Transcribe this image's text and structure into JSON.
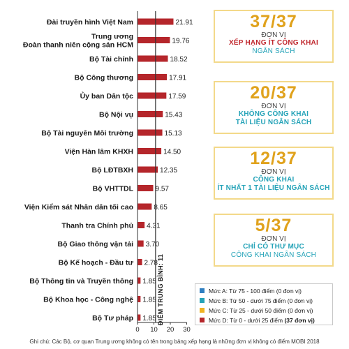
{
  "chart_data": {
    "type": "bar",
    "orientation": "horizontal",
    "categories": [
      [
        "Đài truyền hình Việt Nam"
      ],
      [
        "Trung ương",
        "Đoàn thanh niên cộng sản HCM"
      ],
      [
        "Bộ Tài chính"
      ],
      [
        "Bộ Công thương"
      ],
      [
        "Ủy ban Dân tộc"
      ],
      [
        "Bộ Nội vụ"
      ],
      [
        "Bộ Tài nguyên Môi trường"
      ],
      [
        "Viện Hàn lâm KHXH"
      ],
      [
        "Bộ LĐTBXH"
      ],
      [
        "Bộ VHTTDL"
      ],
      [
        "Viện Kiểm sát Nhân dân tối cao"
      ],
      [
        "Thanh tra Chính phủ"
      ],
      [
        "Bộ Giao thông vận tải"
      ],
      [
        "Bộ Kế hoạch - Đầu tư"
      ],
      [
        "Bộ Thông tin và Truyền thông"
      ],
      [
        "Bộ Khoa học - Công nghệ"
      ],
      [
        "Bộ Tư pháp"
      ]
    ],
    "values": [
      21.91,
      19.76,
      18.52,
      17.91,
      17.59,
      15.43,
      15.13,
      14.5,
      12.35,
      9.57,
      8.65,
      4.31,
      3.7,
      2.78,
      1.85,
      1.85,
      1.85
    ],
    "value_labels": [
      "21.91",
      "19.76",
      "18.52",
      "17.91",
      "17.59",
      "15.43",
      "15.13",
      "14.50",
      "12.35",
      "9.57",
      "8.65",
      "4.31",
      "3.70",
      "2.78",
      "1.85",
      "1.85",
      "1.85"
    ],
    "xlim": [
      0,
      30
    ],
    "xticks": [
      0,
      10,
      20,
      30
    ],
    "average_line": {
      "value": 11,
      "label": "ĐIỂM TRUNG BÌNH: 11"
    },
    "bar_color": "#b5262b",
    "grid": false
  },
  "stats": [
    {
      "big": "37/37",
      "unit": "ĐƠN VỊ",
      "line1": "XẾP HẠNG ÍT CÔNG KHAI",
      "line1_color": "#c0272d",
      "line2": "NGÂN SÁCH",
      "line2_color": "#25a3b8"
    },
    {
      "big": "20/37",
      "unit": "ĐƠN VỊ",
      "line1": "KHÔNG CÔNG KHAI",
      "line1_color": "#25a3b8",
      "line2": "TÀI LIỆU NGÂN SÁCH",
      "line2_color": "#25a3b8"
    },
    {
      "big": "12/37",
      "unit": "ĐƠN VỊ",
      "line1": "CÔNG KHAI",
      "line1_color": "#25a3b8",
      "line2": "ÍT NHẤT 1 TÀI LIỆU NGÂN SÁCH",
      "line2_color": "#25a3b8"
    },
    {
      "big": "5/37",
      "unit": "ĐƠN VỊ",
      "line1": "CHỈ CÓ THƯ MỤC",
      "line1_color": "#25a3b8",
      "line2": "CÔNG KHAI NGÂN SÁCH",
      "line2_color": "#25a3b8"
    }
  ],
  "legend": [
    {
      "text": "Mức A: Từ 75 - 100 điểm (0 đơn vị)",
      "color": "#2f7fc1"
    },
    {
      "text": "Mức B: Từ 50 - dưới 75 điểm (0 đơn vị)",
      "color": "#25a3b8"
    },
    {
      "text": "Mức C: Từ 25 - dưới 50 điểm (0 đơn vị)",
      "color": "#f0b323"
    },
    {
      "prefix": "Mức D: Từ 0 - dưới 25 điểm ",
      "bold": "(37 đơn vị)",
      "color": "#b5262b"
    }
  ],
  "footnote": "Ghi chú: Các Bộ, cơ quan Trung ương không có tên trong bảng xếp hạng là những đơn vị không có điểm MOBI 2018",
  "accent_color": "#e0a21c",
  "box_border_color": "#f3d98a"
}
